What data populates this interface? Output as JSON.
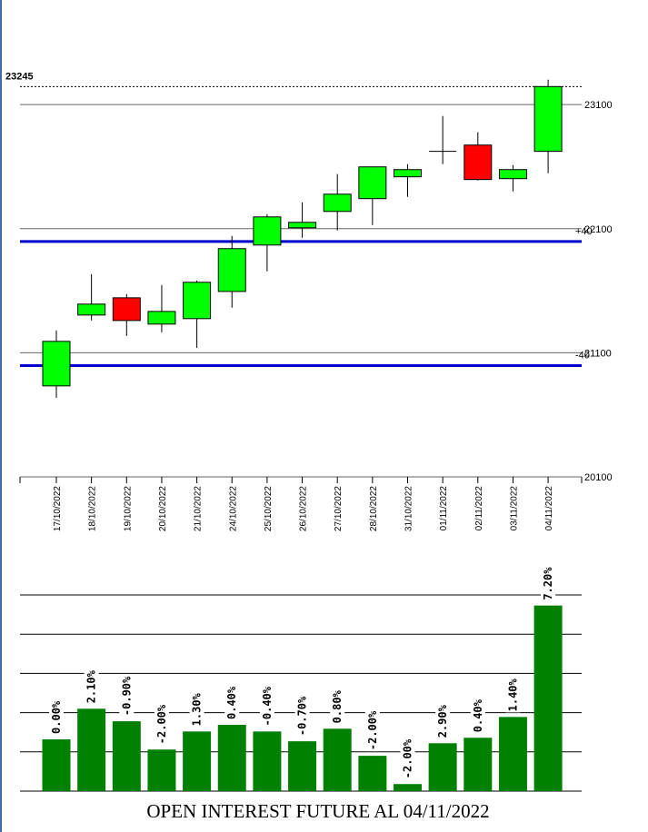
{
  "chart_data": [
    {
      "type": "candlestick",
      "categories": [
        "17/10/2022",
        "18/10/2022",
        "19/10/2022",
        "20/10/2022",
        "21/10/2022",
        "24/10/2022",
        "25/10/2022",
        "26/10/2022",
        "27/10/2022",
        "28/10/2022",
        "31/10/2022",
        "01/11/2022",
        "02/11/2022",
        "03/11/2022",
        "04/11/2022"
      ],
      "open": [
        20833,
        21404,
        21543,
        21331,
        21375,
        21594,
        21968,
        22107,
        22239,
        22342,
        22518,
        22723,
        22774,
        22503,
        22723
      ],
      "high": [
        21280,
        21734,
        21573,
        21646,
        21682,
        22041,
        22217,
        22312,
        22540,
        22598,
        22620,
        23008,
        22877,
        22613,
        23301
      ],
      "low": [
        20737,
        21360,
        21236,
        21265,
        21140,
        21463,
        21756,
        22027,
        22085,
        22129,
        22356,
        22620,
        22488,
        22400,
        22547
      ],
      "close": [
        21192,
        21492,
        21360,
        21433,
        21668,
        21939,
        22195,
        22151,
        22378,
        22598,
        22576,
        22723,
        22496,
        22576,
        23245
      ],
      "ylim": [
        20100,
        23650
      ],
      "yticks": [
        20100,
        21100,
        22100,
        23100
      ],
      "last_price": 23245,
      "bands": [
        {
          "label": "+40",
          "value": 21997
        },
        {
          "label": "-40",
          "value": 20997
        }
      ],
      "band_color": "#0000cc",
      "up_color": "#00ff00",
      "down_color": "#ff0000",
      "grid": true
    },
    {
      "type": "bar",
      "title": "OPEN INTEREST FUTURE AL 04/11/2022",
      "values": [
        1.32,
        2.1,
        1.78,
        1.06,
        1.52,
        1.69,
        1.52,
        1.27,
        1.59,
        0.9,
        0.18,
        1.22,
        1.36,
        1.89,
        4.73
      ],
      "pct_change": [
        0,
        2.1,
        -0.9,
        -2,
        1.3,
        0.4,
        -0.4,
        -0.7,
        0.8,
        -2,
        -2,
        2.9,
        0.4,
        1.4,
        7.2
      ],
      "pct_change_labels": [
        "0.00%",
        "2.10%",
        "-0.90%",
        "-2.00%",
        "1.30%",
        "0.40%",
        "-0.40%",
        "-0.70%",
        "0.80%",
        "-2.00%",
        "-2.00%",
        "2.90%",
        "0.40%",
        "1.40%",
        "7.20%"
      ],
      "ylim": [
        0,
        5
      ],
      "yticks": [
        1,
        2,
        3,
        4,
        5
      ],
      "color": "#008000",
      "grid": true
    }
  ]
}
